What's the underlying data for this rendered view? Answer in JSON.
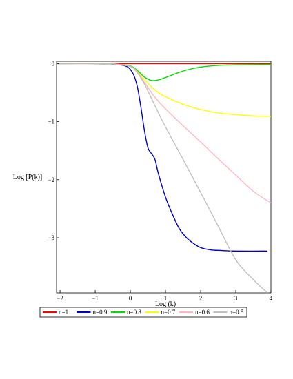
{
  "chart_data": {
    "type": "line",
    "title": "",
    "xlabel": "Log (k)",
    "ylabel": "Log [P(k)]",
    "xlim": [
      -2.1,
      4.0
    ],
    "ylim": [
      -3.95,
      0.04
    ],
    "x_ticks": [
      -2,
      -1,
      0,
      1,
      2,
      3,
      4
    ],
    "y_ticks": [
      0,
      -1,
      -2,
      -3
    ],
    "grid": false,
    "legend_position": "bottom",
    "series": [
      {
        "name": "n=1",
        "color": "#ff0000",
        "points": [
          [
            -2.1,
            0.0
          ],
          [
            4.0,
            0.0
          ]
        ]
      },
      {
        "name": "n=0.9",
        "color": "#0000cc",
        "points": [
          [
            -2.1,
            0.0
          ],
          [
            -1.0,
            0.0
          ],
          [
            -0.6,
            -0.005
          ],
          [
            -0.3,
            -0.02
          ],
          [
            -0.1,
            -0.05
          ],
          [
            0.0,
            -0.1
          ],
          [
            0.1,
            -0.2
          ],
          [
            0.2,
            -0.4
          ],
          [
            0.3,
            -0.75
          ],
          [
            0.4,
            -1.15
          ],
          [
            0.5,
            -1.45
          ],
          [
            0.6,
            -1.55
          ],
          [
            0.7,
            -1.65
          ],
          [
            0.8,
            -1.9
          ],
          [
            1.0,
            -2.3
          ],
          [
            1.2,
            -2.6
          ],
          [
            1.4,
            -2.85
          ],
          [
            1.6,
            -3.0
          ],
          [
            1.8,
            -3.1
          ],
          [
            2.0,
            -3.17
          ],
          [
            2.3,
            -3.21
          ],
          [
            2.6,
            -3.22
          ],
          [
            3.0,
            -3.23
          ],
          [
            3.9,
            -3.23
          ]
        ]
      },
      {
        "name": "n=0.8",
        "color": "#00e000",
        "points": [
          [
            -2.1,
            0.0
          ],
          [
            -1.0,
            0.0
          ],
          [
            -0.5,
            -0.005
          ],
          [
            0.0,
            -0.04
          ],
          [
            0.2,
            -0.12
          ],
          [
            0.4,
            -0.23
          ],
          [
            0.6,
            -0.29
          ],
          [
            0.8,
            -0.28
          ],
          [
            1.0,
            -0.24
          ],
          [
            1.3,
            -0.17
          ],
          [
            1.6,
            -0.11
          ],
          [
            2.0,
            -0.06
          ],
          [
            2.5,
            -0.03
          ],
          [
            3.0,
            -0.02
          ],
          [
            4.0,
            -0.015
          ]
        ]
      },
      {
        "name": "n=0.7",
        "color": "#ffff00",
        "points": [
          [
            -2.1,
            0.0
          ],
          [
            -1.0,
            0.0
          ],
          [
            -0.5,
            -0.005
          ],
          [
            0.0,
            -0.05
          ],
          [
            0.2,
            -0.14
          ],
          [
            0.4,
            -0.28
          ],
          [
            0.6,
            -0.4
          ],
          [
            0.8,
            -0.5
          ],
          [
            1.0,
            -0.57
          ],
          [
            1.5,
            -0.7
          ],
          [
            2.0,
            -0.79
          ],
          [
            2.5,
            -0.85
          ],
          [
            3.0,
            -0.88
          ],
          [
            3.5,
            -0.9
          ],
          [
            4.0,
            -0.91
          ]
        ]
      },
      {
        "name": "n=0.6",
        "color": "#ffb6c1",
        "points": [
          [
            -2.1,
            0.0
          ],
          [
            -1.0,
            0.0
          ],
          [
            -0.5,
            -0.005
          ],
          [
            0.0,
            -0.05
          ],
          [
            0.2,
            -0.15
          ],
          [
            0.4,
            -0.32
          ],
          [
            0.6,
            -0.5
          ],
          [
            0.8,
            -0.65
          ],
          [
            1.0,
            -0.78
          ],
          [
            1.5,
            -1.07
          ],
          [
            2.0,
            -1.35
          ],
          [
            2.5,
            -1.64
          ],
          [
            3.0,
            -1.92
          ],
          [
            3.5,
            -2.2
          ],
          [
            4.0,
            -2.4
          ]
        ]
      },
      {
        "name": "n=0.5",
        "color": "#c0c0c0",
        "points": [
          [
            -2.1,
            0.0
          ],
          [
            -1.0,
            0.0
          ],
          [
            -0.5,
            -0.005
          ],
          [
            0.0,
            -0.05
          ],
          [
            0.2,
            -0.16
          ],
          [
            0.4,
            -0.35
          ],
          [
            0.6,
            -0.6
          ],
          [
            0.8,
            -0.85
          ],
          [
            1.0,
            -1.09
          ],
          [
            1.5,
            -1.65
          ],
          [
            2.0,
            -2.22
          ],
          [
            2.5,
            -2.8
          ],
          [
            3.0,
            -3.38
          ],
          [
            3.5,
            -3.72
          ],
          [
            3.9,
            -3.95
          ]
        ]
      }
    ]
  }
}
